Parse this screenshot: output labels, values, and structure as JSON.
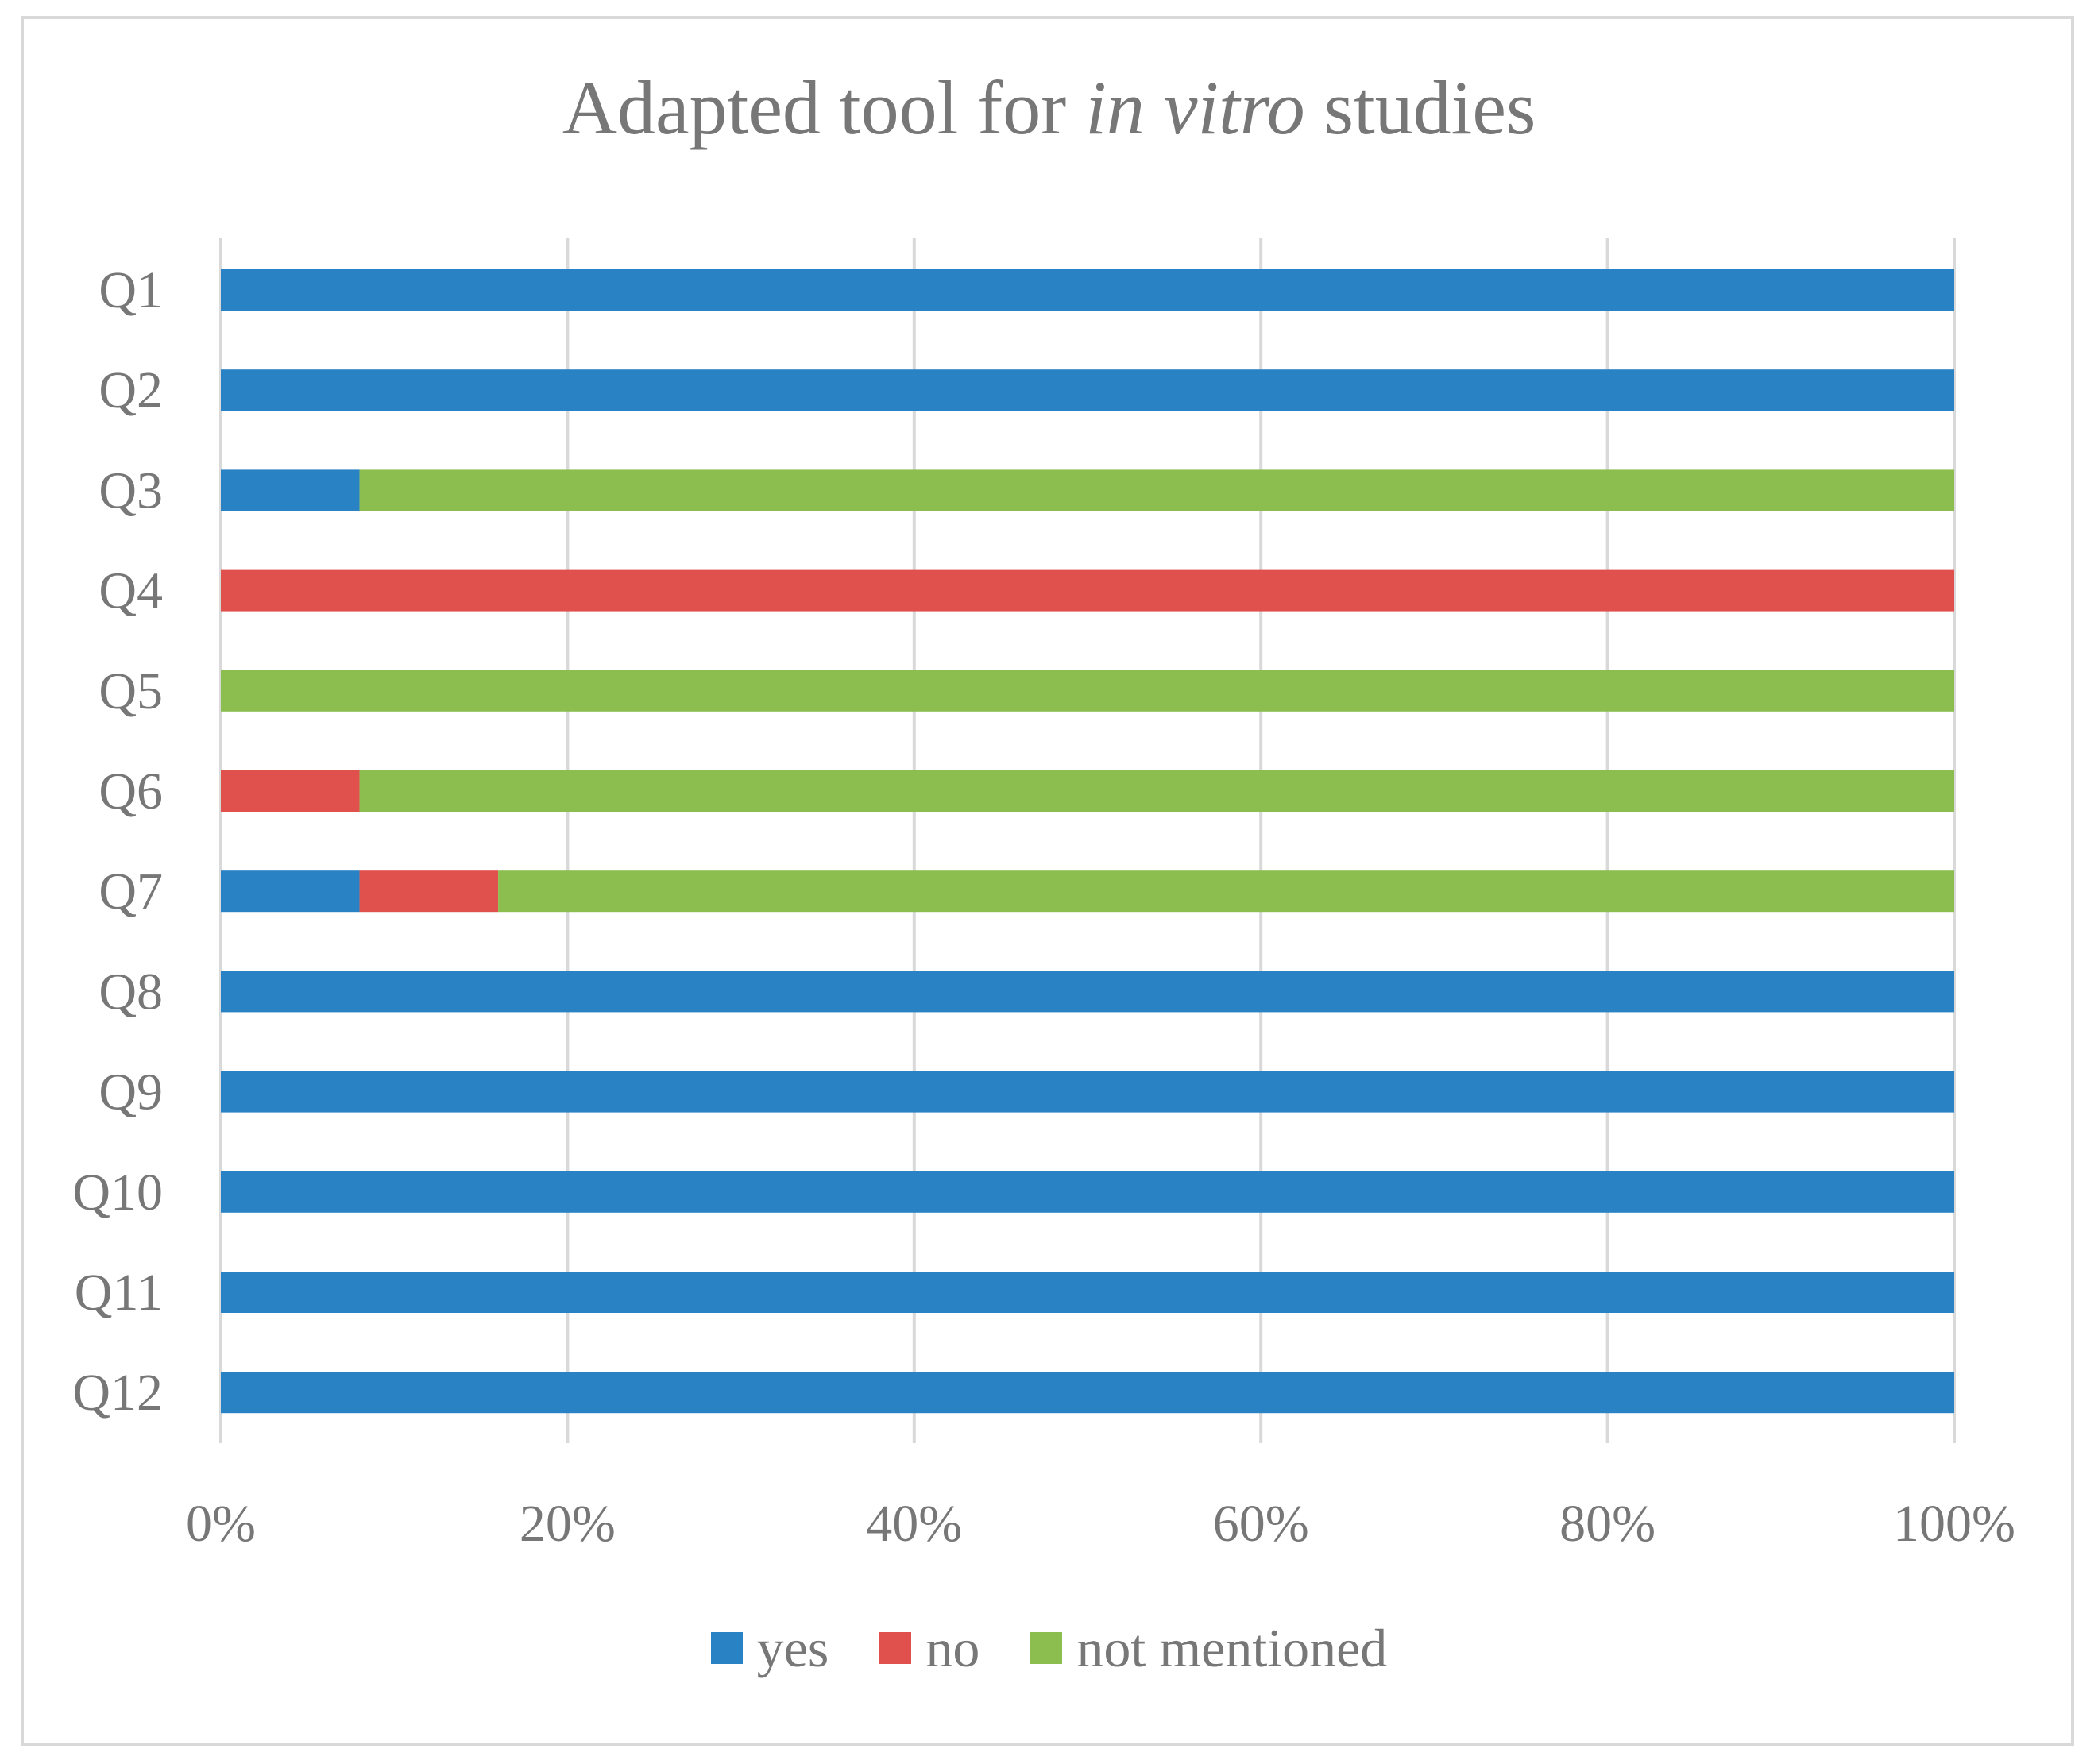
{
  "chart_data": {
    "type": "bar",
    "orientation": "horizontal",
    "stacked": "100%",
    "title": {
      "prefix": "Adapted tool for ",
      "italic": "in vitro",
      "suffix": " studies"
    },
    "categories": [
      "Q1",
      "Q2",
      "Q3",
      "Q4",
      "Q5",
      "Q6",
      "Q7",
      "Q8",
      "Q9",
      "Q10",
      "Q11",
      "Q12"
    ],
    "series": [
      {
        "name": "yes",
        "color": "#2882c4",
        "values": [
          100,
          100,
          8,
          0,
          0,
          0,
          8,
          100,
          100,
          100,
          100,
          100
        ]
      },
      {
        "name": "no",
        "color": "#e0504c",
        "values": [
          0,
          0,
          0,
          100,
          0,
          8,
          8,
          0,
          0,
          0,
          0,
          0
        ]
      },
      {
        "name": "not mentioned",
        "color": "#8bbd4f",
        "values": [
          0,
          0,
          92,
          0,
          100,
          92,
          84,
          0,
          0,
          0,
          0,
          0
        ]
      }
    ],
    "xticks": [
      "0%",
      "20%",
      "40%",
      "60%",
      "80%",
      "100%"
    ],
    "xlim": [
      0,
      100
    ],
    "grid": true,
    "legend_position": "bottom"
  }
}
